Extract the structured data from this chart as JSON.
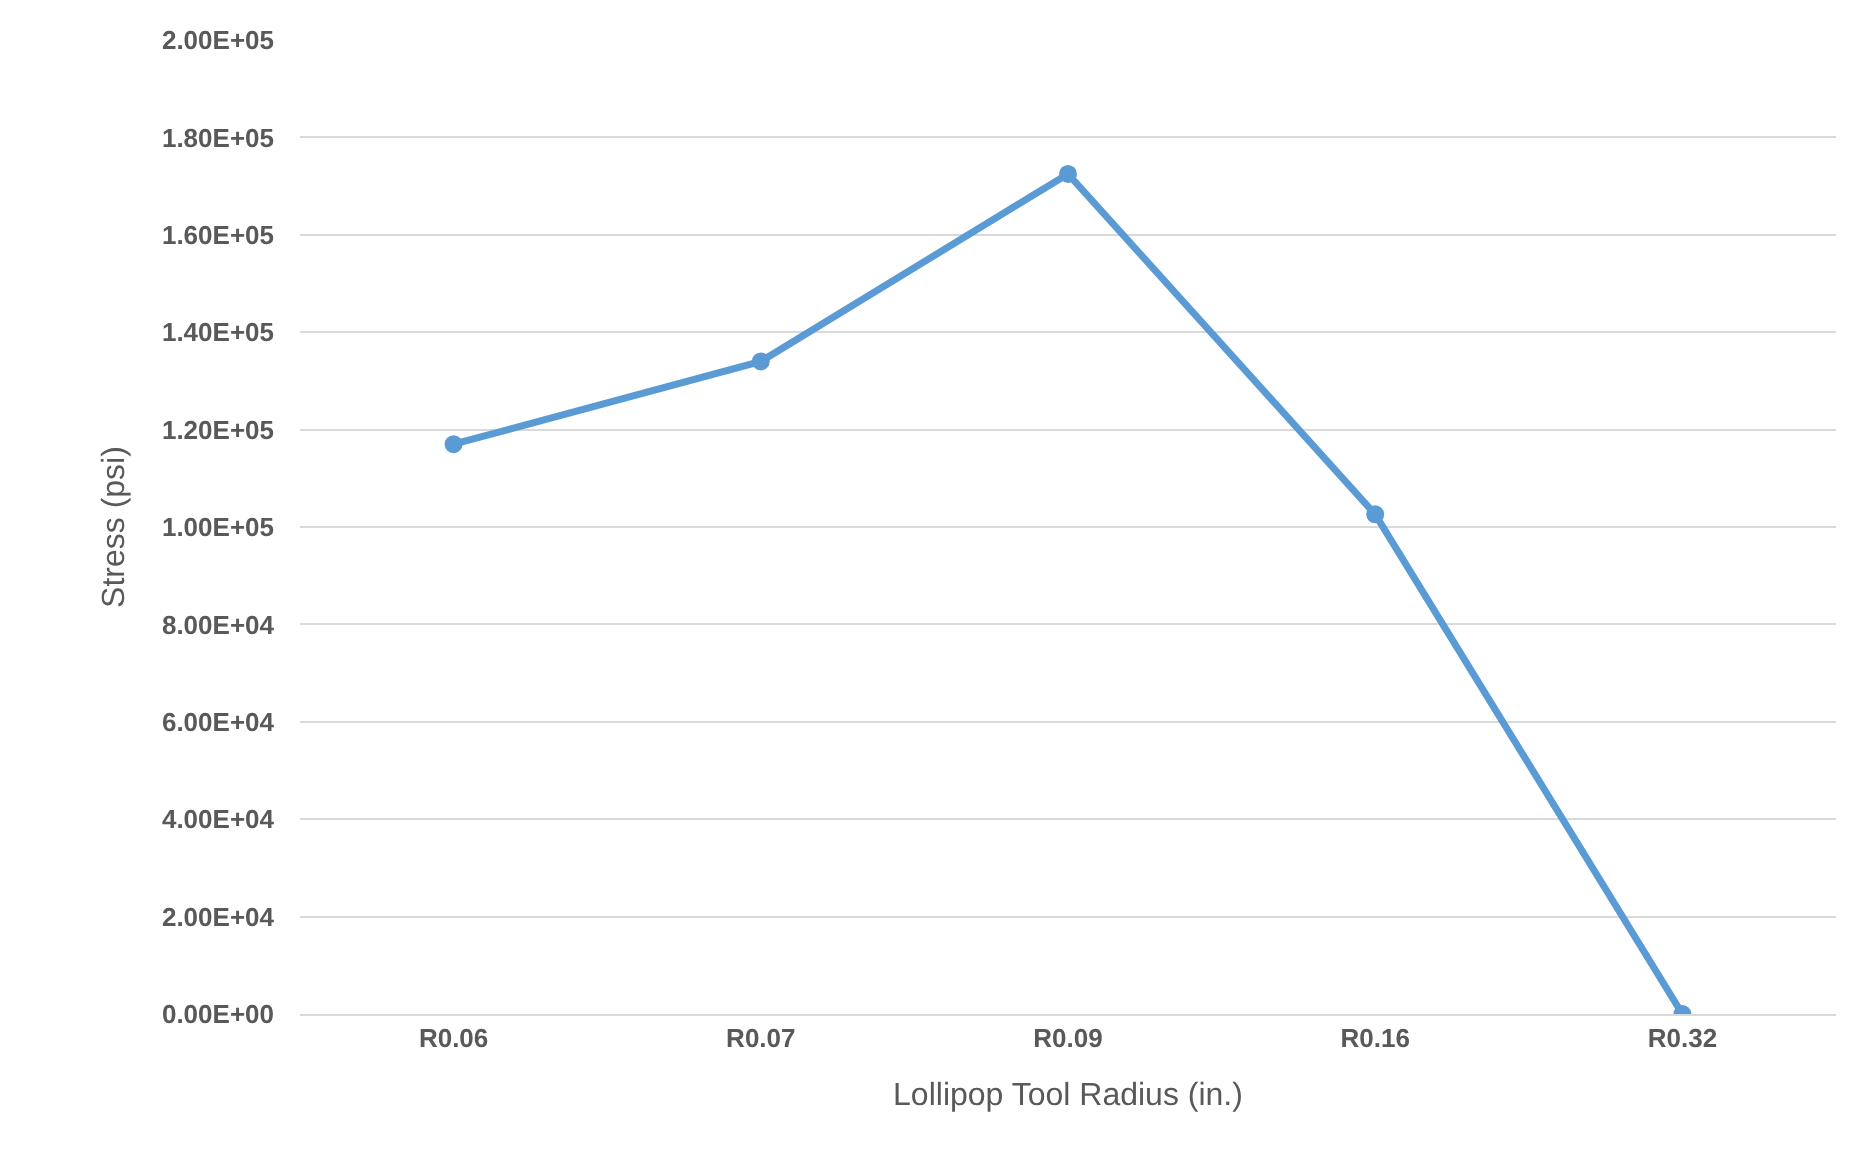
{
  "chart_data": {
    "type": "line",
    "xlabel": "Lollipop Tool Radius (in.)",
    "ylabel": "Stress (psi)",
    "categories": [
      "R0.06",
      "R0.07",
      "R0.09",
      "R0.16",
      "R0.32"
    ],
    "series": [
      {
        "color": "#5b9bd5",
        "values": [
          117000,
          134000,
          172500,
          102600,
          0
        ]
      }
    ],
    "ylim": [
      0,
      200000
    ],
    "yticks": [
      {
        "value": 0,
        "label": "0.00E+00"
      },
      {
        "value": 20000,
        "label": "2.00E+04"
      },
      {
        "value": 40000,
        "label": "4.00E+04"
      },
      {
        "value": 60000,
        "label": "6.00E+04"
      },
      {
        "value": 80000,
        "label": "8.00E+04"
      },
      {
        "value": 100000,
        "label": "1.00E+05"
      },
      {
        "value": 120000,
        "label": "1.20E+05"
      },
      {
        "value": 140000,
        "label": "1.40E+05"
      },
      {
        "value": 160000,
        "label": "1.60E+05"
      },
      {
        "value": 180000,
        "label": "1.80E+05"
      },
      {
        "value": 200000,
        "label": "2.00E+05"
      }
    ],
    "grid": "y",
    "legend": false,
    "marker": "circle",
    "line_style": "solid"
  }
}
